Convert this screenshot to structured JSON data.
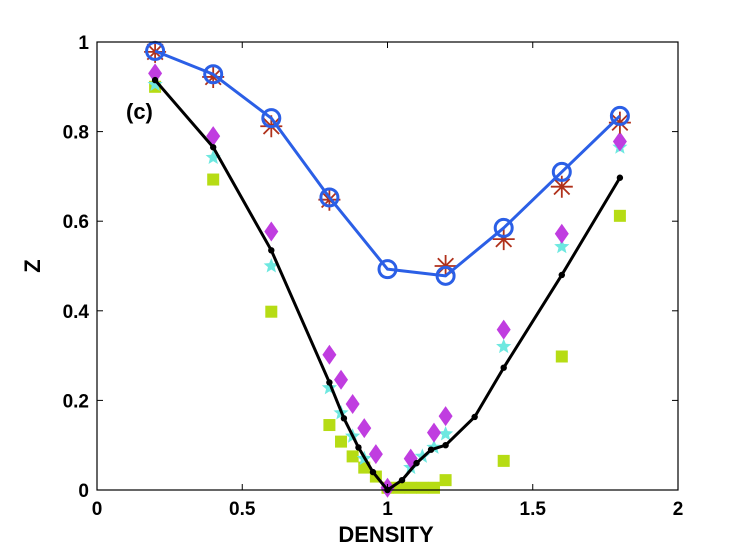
{
  "chart_data": {
    "type": "scatter",
    "title": "",
    "panel_label": "(c)",
    "xlabel": "DENSITY",
    "ylabel": "Z",
    "xlim": [
      0,
      2
    ],
    "ylim": [
      0,
      1
    ],
    "xticks": [
      0,
      0.5,
      1,
      1.5,
      2
    ],
    "xtick_labels": [
      "0",
      "0.5",
      "1",
      "1.5",
      "2"
    ],
    "yticks": [
      0,
      0.2,
      0.4,
      0.6,
      0.8,
      1
    ],
    "ytick_labels": [
      "0",
      "0.2",
      "0.4",
      "0.6",
      "0.8",
      "1"
    ],
    "grid": false,
    "series": [
      {
        "name": "blue-circles-line",
        "marker": "circle",
        "line": true,
        "color": "#2b5fe6",
        "x": [
          0.2,
          0.4,
          0.6,
          0.8,
          1.0,
          1.2,
          1.4,
          1.6,
          1.8
        ],
        "y": [
          0.98,
          0.928,
          0.83,
          0.653,
          0.493,
          0.478,
          0.585,
          0.71,
          0.835
        ]
      },
      {
        "name": "red-asterisks",
        "marker": "asterisk",
        "line": false,
        "color": "#b0311b",
        "x": [
          0.2,
          0.4,
          0.6,
          0.8,
          1.2,
          1.4,
          1.6,
          1.8
        ],
        "y": [
          0.978,
          0.922,
          0.812,
          0.648,
          0.5,
          0.56,
          0.677,
          0.82
        ]
      },
      {
        "name": "black-dots-line",
        "marker": "dot",
        "line": true,
        "color": "#000000",
        "x": [
          0.2,
          0.4,
          0.6,
          0.8,
          0.85,
          0.9,
          0.95,
          1.0,
          1.05,
          1.1,
          1.15,
          1.2,
          1.3,
          1.4,
          1.6,
          1.8
        ],
        "y": [
          0.915,
          0.765,
          0.535,
          0.24,
          0.16,
          0.095,
          0.04,
          0.0,
          0.022,
          0.06,
          0.09,
          0.1,
          0.163,
          0.273,
          0.48,
          0.697
        ]
      },
      {
        "name": "magenta-diamonds",
        "marker": "diamond",
        "line": false,
        "color": "#c03de0",
        "x": [
          0.2,
          0.4,
          0.6,
          0.8,
          0.84,
          0.88,
          0.92,
          0.96,
          1.0,
          1.08,
          1.16,
          1.2,
          1.4,
          1.6,
          1.8
        ],
        "y": [
          0.93,
          0.79,
          0.577,
          0.302,
          0.246,
          0.192,
          0.138,
          0.08,
          0.005,
          0.07,
          0.128,
          0.165,
          0.358,
          0.572,
          0.778
        ]
      },
      {
        "name": "cyan-stars",
        "marker": "star",
        "line": false,
        "color": "#6ee8e0",
        "x": [
          0.2,
          0.4,
          0.6,
          0.8,
          0.84,
          0.88,
          0.92,
          1.08,
          1.12,
          1.16,
          1.2,
          1.4,
          1.6,
          1.8
        ],
        "y": [
          0.905,
          0.742,
          0.5,
          0.228,
          0.172,
          0.12,
          0.07,
          0.05,
          0.075,
          0.095,
          0.125,
          0.32,
          0.543,
          0.765
        ]
      },
      {
        "name": "yellow-green-squares",
        "marker": "square",
        "line": false,
        "color": "#b6dc14",
        "x": [
          0.2,
          0.4,
          0.6,
          0.8,
          0.84,
          0.88,
          0.92,
          0.96,
          1.0,
          1.04,
          1.08,
          1.12,
          1.16,
          1.2,
          1.4,
          1.6,
          1.8
        ],
        "y": [
          0.9,
          0.693,
          0.398,
          0.145,
          0.108,
          0.075,
          0.05,
          0.03,
          0.005,
          0.005,
          0.005,
          0.005,
          0.005,
          0.022,
          0.065,
          0.298,
          0.612
        ]
      }
    ]
  }
}
